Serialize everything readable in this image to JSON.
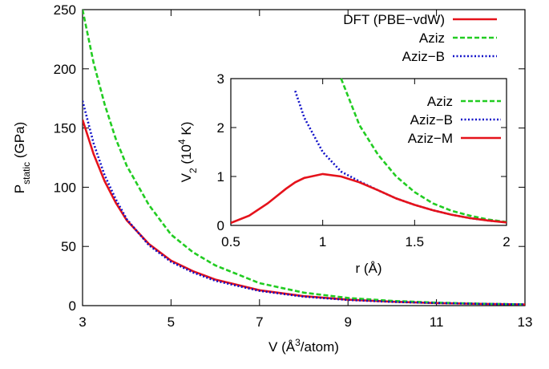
{
  "chart_data": [
    {
      "type": "line",
      "xlabel": [
        {
          "text": "V (Å"
        },
        {
          "text": "3",
          "style": "sup"
        },
        {
          "text": "/atom)"
        }
      ],
      "ylabel": [
        {
          "text": "P"
        },
        {
          "text": "static",
          "style": "sub"
        },
        {
          "text": " (GPa)"
        }
      ],
      "x": [
        3,
        3.25,
        3.5,
        3.75,
        4,
        4.5,
        5,
        5.5,
        6,
        7,
        8,
        9,
        10,
        11,
        12,
        13
      ],
      "series": [
        {
          "name": "DFT (PBE−vdW)",
          "color": "#e5121b",
          "dash": "solid",
          "values": [
            157,
            128,
            105,
            87,
            72,
            52,
            38,
            29,
            22,
            13,
            8,
            5,
            3.3,
            2.2,
            1.5,
            1
          ]
        },
        {
          "name": "Aziz",
          "color": "#22cc22",
          "dash": "dashed",
          "values": [
            250,
            205,
            170,
            141,
            118,
            85,
            60,
            45,
            34,
            19,
            11,
            6.5,
            4,
            2.5,
            1.6,
            1
          ]
        },
        {
          "name": "Aziz−B",
          "color": "#1010c8",
          "dash": "dotted",
          "values": [
            173,
            137,
            110,
            90,
            73,
            51,
            37,
            28,
            21,
            12.5,
            7.6,
            4.8,
            3.2,
            2.2,
            1.5,
            1
          ]
        }
      ],
      "xlim": [
        3,
        13
      ],
      "ylim": [
        0,
        250
      ],
      "xticks": [
        3,
        5,
        7,
        9,
        11,
        13
      ],
      "yticks": [
        0,
        50,
        100,
        150,
        200,
        250
      ],
      "legend": "top-right"
    },
    {
      "type": "line",
      "xlabel": [
        {
          "text": "r (Å)"
        }
      ],
      "ylabel": [
        {
          "text": "V"
        },
        {
          "text": "2",
          "style": "sub"
        },
        {
          "text": " (10"
        },
        {
          "text": "4",
          "style": "sup"
        },
        {
          "text": " K)"
        }
      ],
      "x": [
        0.5,
        0.6,
        0.7,
        0.8,
        0.85,
        0.9,
        1,
        1.1,
        1.2,
        1.3,
        1.4,
        1.5,
        1.6,
        1.7,
        1.8,
        1.9,
        2
      ],
      "series": [
        {
          "name": "Aziz",
          "color": "#22cc22",
          "dash": "dashed",
          "values": [
            null,
            null,
            null,
            null,
            null,
            null,
            null,
            3,
            2.05,
            1.45,
            1.0,
            0.68,
            0.45,
            0.3,
            0.2,
            0.12,
            0.07
          ]
        },
        {
          "name": "Aziz−B",
          "color": "#1010c8",
          "dash": "dotted",
          "values": [
            null,
            null,
            null,
            null,
            2.75,
            2.2,
            1.5,
            1.1,
            0.9,
            0.72,
            0.55,
            0.42,
            0.31,
            0.22,
            0.15,
            0.1,
            0.06
          ]
        },
        {
          "name": "Aziz−M",
          "color": "#e5121b",
          "dash": "solid",
          "values": [
            0.05,
            0.2,
            0.45,
            0.75,
            0.88,
            0.97,
            1.05,
            1.0,
            0.88,
            0.72,
            0.55,
            0.42,
            0.31,
            0.22,
            0.15,
            0.1,
            0.06
          ]
        }
      ],
      "xlim": [
        0.5,
        2
      ],
      "ylim": [
        0,
        3
      ],
      "xticks": [
        0.5,
        1,
        1.5,
        2
      ],
      "yticks": [
        0,
        1,
        2,
        3
      ],
      "legend": "top-right"
    }
  ]
}
